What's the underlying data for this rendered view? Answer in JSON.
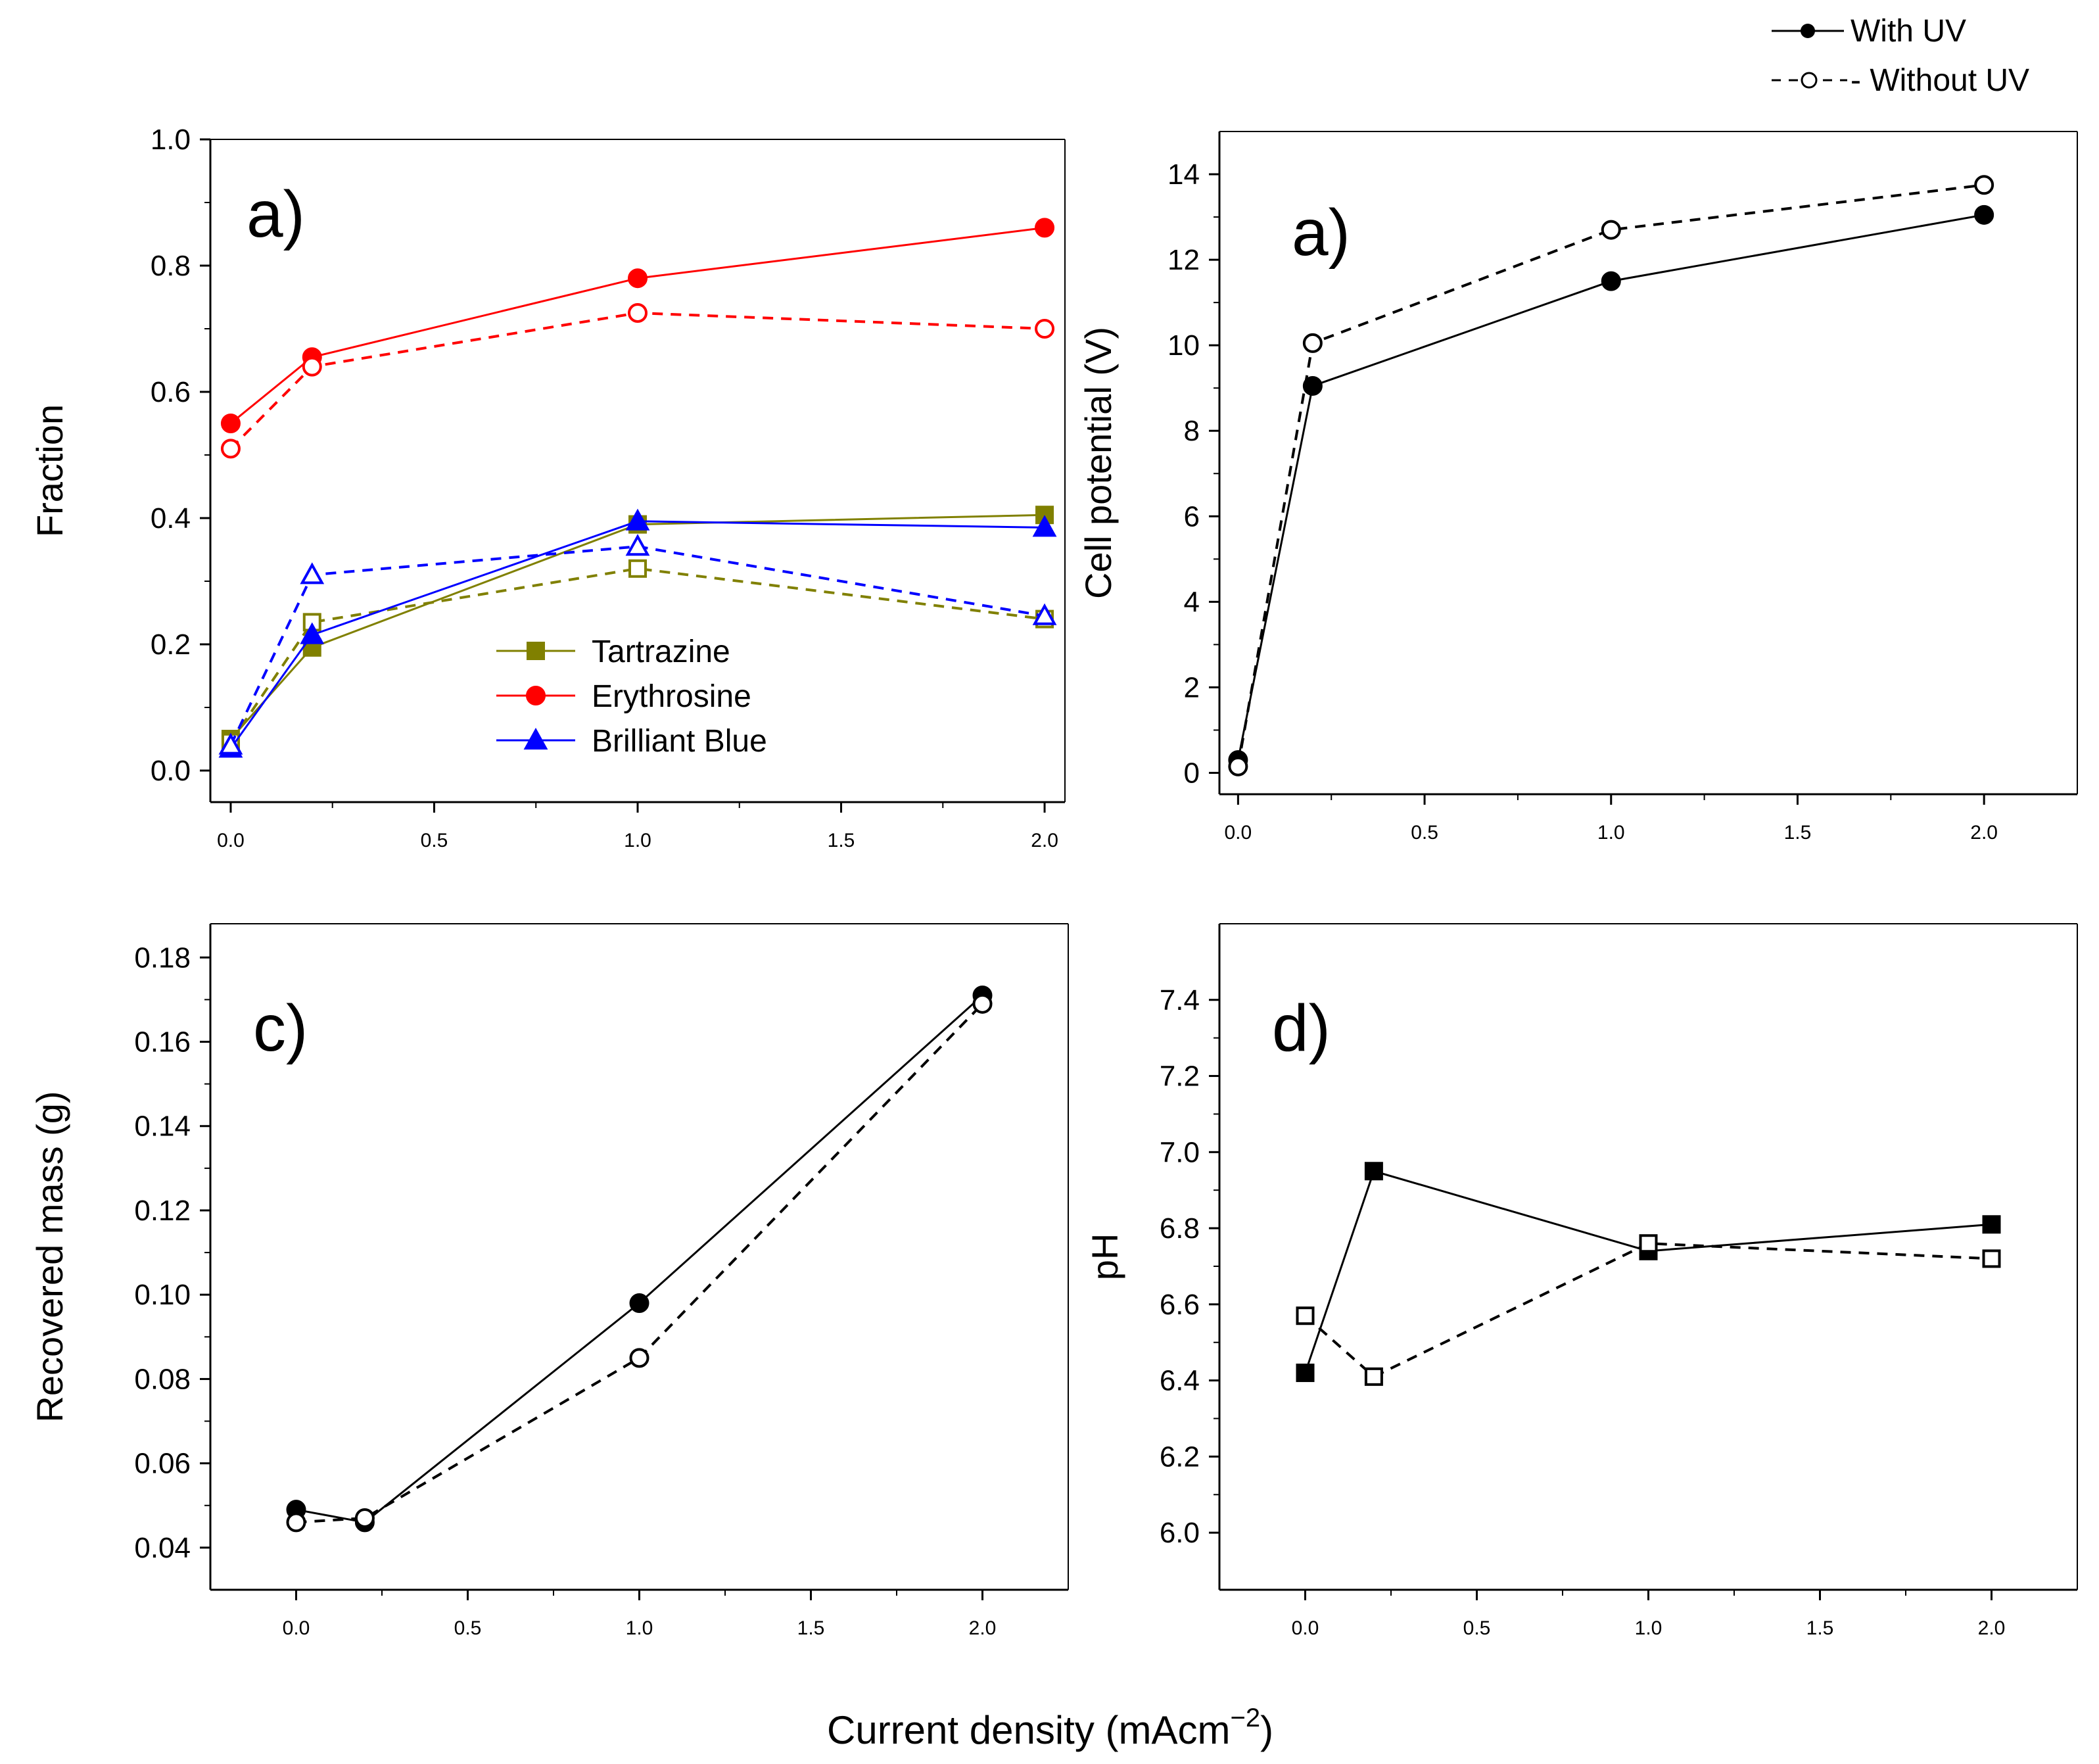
{
  "figure": {
    "xlabel": "Current density (mAcm",
    "xlabel_sup": "−2",
    "xlabel_close": ")",
    "uv_legend": [
      {
        "label": "With UV",
        "line": "solid",
        "marker": "filled-circle"
      },
      {
        "label": "- Without UV",
        "line": "dashed",
        "marker": "open-circle"
      }
    ]
  },
  "chart_data": [
    {
      "id": "fraction",
      "type": "line",
      "panel_label": "a)",
      "title": "",
      "xlabel": "",
      "ylabel": "Fraction",
      "xlim": [
        -0.05,
        2.05
      ],
      "ylim": [
        -0.05,
        1.0
      ],
      "xticks": [
        0.0,
        0.5,
        1.0,
        1.5,
        2.0
      ],
      "xtick_labels": [
        "0.0",
        "0.5",
        "1.0",
        "1.5",
        "2.0"
      ],
      "yticks": [
        0.0,
        0.2,
        0.4,
        0.6,
        0.8,
        1.0
      ],
      "ytick_labels": [
        "0.0",
        "0.2",
        "0.4",
        "0.6",
        "0.8",
        "1.0"
      ],
      "legend": [
        {
          "label": "Tartrazine",
          "color": "#808000",
          "marker": "square"
        },
        {
          "label": "Erythrosine",
          "color": "#ff0000",
          "marker": "circle"
        },
        {
          "label": "Brilliant Blue",
          "color": "#0000ff",
          "marker": "triangle"
        }
      ],
      "series": [
        {
          "name": "Tartrazine (with UV)",
          "color": "#808000",
          "marker": "square",
          "filled": true,
          "dashed": false,
          "x": [
            0.0,
            0.2,
            1.0,
            2.0
          ],
          "y": [
            0.05,
            0.195,
            0.39,
            0.405
          ]
        },
        {
          "name": "Tartrazine (without UV)",
          "color": "#808000",
          "marker": "square",
          "filled": false,
          "dashed": true,
          "x": [
            0.0,
            0.2,
            1.0,
            2.0
          ],
          "y": [
            0.045,
            0.235,
            0.32,
            0.24
          ]
        },
        {
          "name": "Erythrosine (with UV)",
          "color": "#ff0000",
          "marker": "circle",
          "filled": true,
          "dashed": false,
          "x": [
            0.0,
            0.2,
            1.0,
            2.0
          ],
          "y": [
            0.55,
            0.655,
            0.78,
            0.86
          ]
        },
        {
          "name": "Erythrosine (without UV)",
          "color": "#ff0000",
          "marker": "circle",
          "filled": false,
          "dashed": true,
          "x": [
            0.0,
            0.2,
            1.0,
            2.0
          ],
          "y": [
            0.51,
            0.64,
            0.725,
            0.7
          ]
        },
        {
          "name": "Brilliant Blue (with UV)",
          "color": "#0000ff",
          "marker": "triangle",
          "filled": true,
          "dashed": false,
          "x": [
            0.0,
            0.2,
            1.0,
            2.0
          ],
          "y": [
            0.035,
            0.215,
            0.395,
            0.385
          ]
        },
        {
          "name": "Brilliant Blue (without UV)",
          "color": "#0000ff",
          "marker": "triangle",
          "filled": false,
          "dashed": true,
          "x": [
            0.0,
            0.2,
            1.0,
            2.0
          ],
          "y": [
            0.04,
            0.31,
            0.355,
            0.245
          ]
        }
      ]
    },
    {
      "id": "cell-potential",
      "type": "line",
      "panel_label": "a)",
      "title": "",
      "xlabel": "",
      "ylabel": "Cell potential (V)",
      "xlim": [
        -0.05,
        2.25
      ],
      "ylim": [
        -0.5,
        15.0
      ],
      "xticks": [
        0.0,
        0.5,
        1.0,
        1.5,
        2.0
      ],
      "xtick_labels": [
        "0.0",
        "0.5",
        "1.0",
        "1.5",
        "2.0"
      ],
      "yticks": [
        0,
        2,
        4,
        6,
        8,
        10,
        12,
        14
      ],
      "ytick_labels": [
        "0",
        "2",
        "4",
        "6",
        "8",
        "10",
        "12",
        "14"
      ],
      "series": [
        {
          "name": "With UV",
          "color": "#000000",
          "marker": "circle",
          "filled": true,
          "dashed": false,
          "x": [
            0.0,
            0.2,
            1.0,
            2.0
          ],
          "y": [
            0.3,
            9.05,
            11.5,
            13.05
          ]
        },
        {
          "name": "Without UV",
          "color": "#000000",
          "marker": "circle",
          "filled": false,
          "dashed": true,
          "x": [
            0.0,
            0.2,
            1.0,
            2.0
          ],
          "y": [
            0.15,
            10.05,
            12.7,
            13.75
          ]
        }
      ]
    },
    {
      "id": "recovered-mass",
      "type": "line",
      "panel_label": "c)",
      "title": "",
      "xlabel": "",
      "ylabel": "Recovered mass (g)",
      "xlim": [
        -0.25,
        2.25
      ],
      "ylim": [
        0.03,
        0.188
      ],
      "xticks": [
        0.0,
        0.5,
        1.0,
        1.5,
        2.0
      ],
      "xtick_labels": [
        "0.0",
        "0.5",
        "1.0",
        "1.5",
        "2.0"
      ],
      "yticks": [
        0.04,
        0.06,
        0.08,
        0.1,
        0.12,
        0.14,
        0.16,
        0.18
      ],
      "ytick_labels": [
        "0.04",
        "0.06",
        "0.08",
        "0.10",
        "0.12",
        "0.14",
        "0.16",
        "0.18"
      ],
      "series": [
        {
          "name": "With UV",
          "color": "#000000",
          "marker": "circle",
          "filled": true,
          "dashed": false,
          "x": [
            0.0,
            0.2,
            1.0,
            2.0
          ],
          "y": [
            0.049,
            0.046,
            0.098,
            0.171
          ]
        },
        {
          "name": "Without UV",
          "color": "#000000",
          "marker": "circle",
          "filled": false,
          "dashed": true,
          "x": [
            0.0,
            0.2,
            1.0,
            2.0
          ],
          "y": [
            0.046,
            0.047,
            0.085,
            0.169
          ]
        }
      ]
    },
    {
      "id": "ph",
      "type": "line",
      "panel_label": "d)",
      "title": "",
      "xlabel": "",
      "ylabel": "pH",
      "xlim": [
        -0.25,
        2.25
      ],
      "ylim": [
        5.85,
        7.6
      ],
      "xticks": [
        0.0,
        0.5,
        1.0,
        1.5,
        2.0
      ],
      "xtick_labels": [
        "0.0",
        "0.5",
        "1.0",
        "1.5",
        "2.0"
      ],
      "yticks": [
        6.0,
        6.2,
        6.4,
        6.6,
        6.8,
        7.0,
        7.2,
        7.4
      ],
      "ytick_labels": [
        "6.0",
        "6.2",
        "6.4",
        "6.6",
        "6.8",
        "7.0",
        "7.2",
        "7.4"
      ],
      "series": [
        {
          "name": "With UV",
          "color": "#000000",
          "marker": "square",
          "filled": true,
          "dashed": false,
          "x": [
            0.0,
            0.2,
            1.0,
            2.0
          ],
          "y": [
            6.42,
            6.95,
            6.74,
            6.81
          ]
        },
        {
          "name": "Without UV",
          "color": "#000000",
          "marker": "square",
          "filled": false,
          "dashed": true,
          "x": [
            0.0,
            0.2,
            1.0,
            2.0
          ],
          "y": [
            6.57,
            6.41,
            6.76,
            6.72
          ]
        }
      ]
    }
  ]
}
